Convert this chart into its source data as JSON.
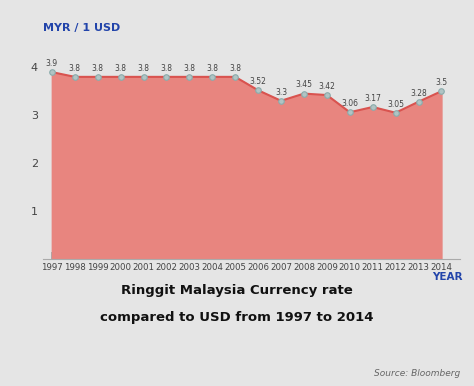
{
  "years": [
    1997,
    1998,
    1999,
    2000,
    2001,
    2002,
    2003,
    2004,
    2005,
    2006,
    2007,
    2008,
    2009,
    2010,
    2011,
    2012,
    2013,
    2014
  ],
  "values": [
    3.9,
    3.8,
    3.8,
    3.8,
    3.8,
    3.8,
    3.8,
    3.8,
    3.8,
    3.52,
    3.3,
    3.45,
    3.42,
    3.06,
    3.17,
    3.05,
    3.28,
    3.5
  ],
  "line_color": "#d9534f",
  "fill_color": "#e8857f",
  "marker_color": "#b0c4c4",
  "marker_edge_color": "#8aabab",
  "xlabel": "YEAR",
  "ylabel_text": "MYR / 1 USD",
  "title_line1": "Ringgit Malaysia Currency rate",
  "title_line2": "compared to USD from 1997 to 2014",
  "source": "Source: Bloomberg",
  "ylim": [
    0,
    4.6
  ],
  "yticks": [
    1,
    2,
    3,
    4
  ],
  "bg_color": "#e5e5e5",
  "plot_bg_color": "#e5e5e5",
  "label_color": "#444444",
  "axis_label_color": "#2244aa",
  "title_color": "#111111",
  "source_color": "#666666",
  "tick_color": "#8aabab"
}
